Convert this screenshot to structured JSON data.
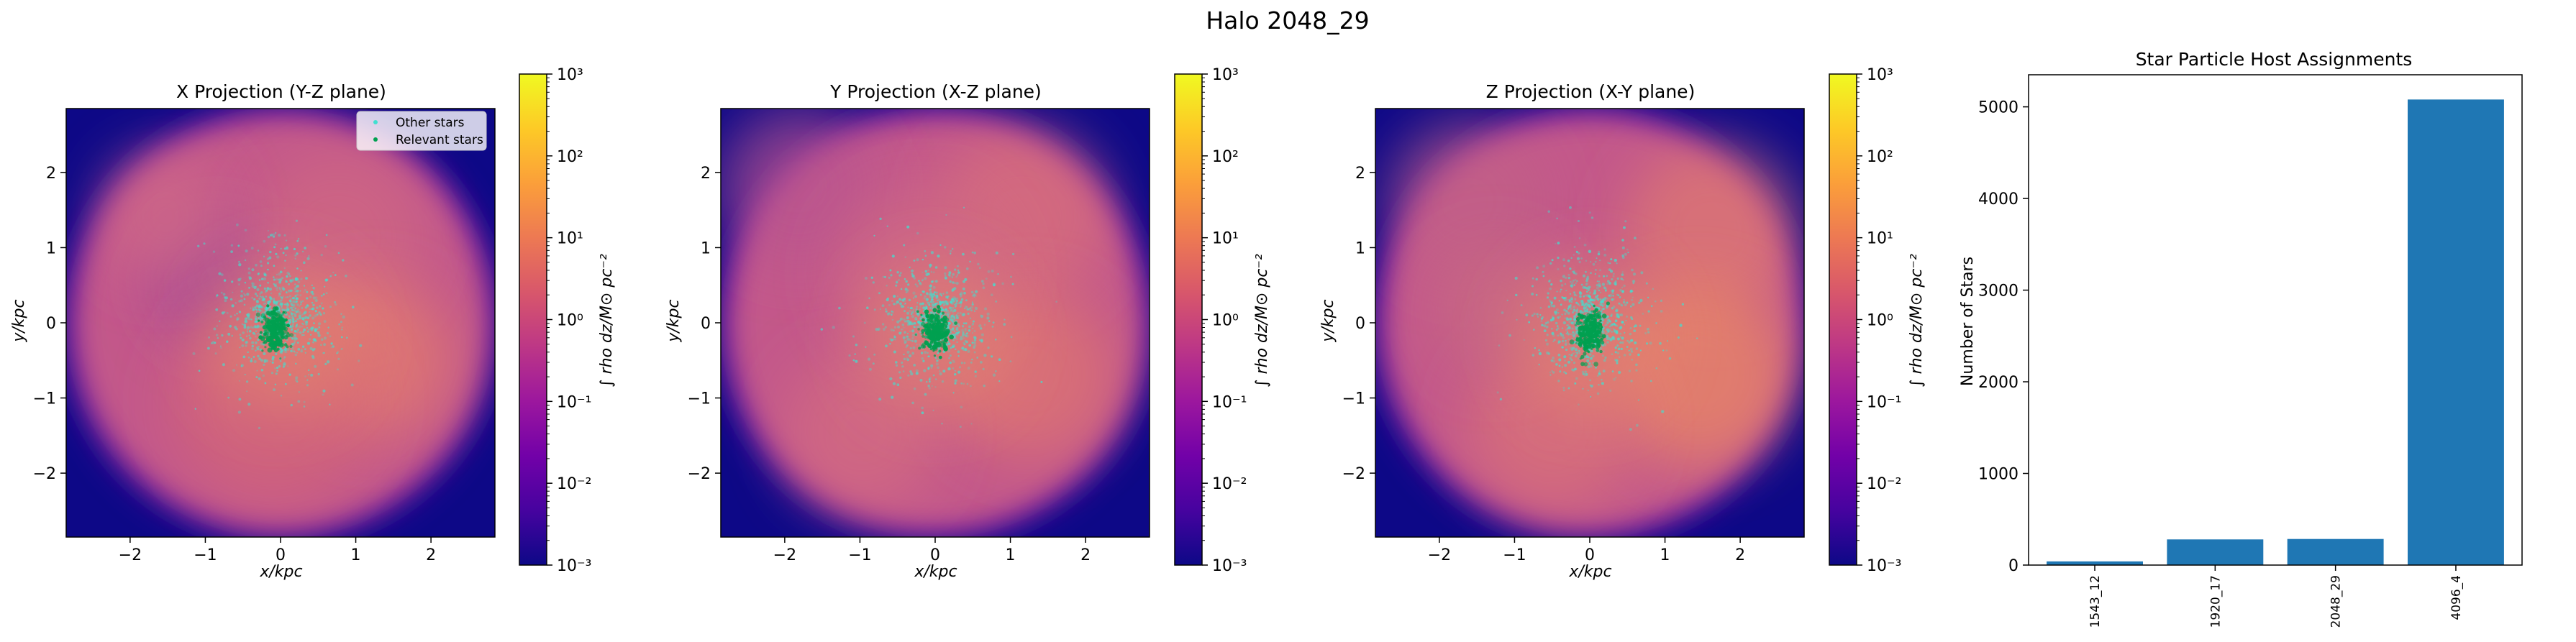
{
  "suptitle": "Halo 2048_29",
  "colors": {
    "bar": "#1f77b4",
    "other_stars": "#41e0d0",
    "relevant_stars": "#00a050",
    "plasma": [
      "#0d0887",
      "#46039f",
      "#7201a8",
      "#9c179e",
      "#bd3786",
      "#d8576b",
      "#ed7953",
      "#fb9f3a",
      "#fdca26",
      "#f0f921"
    ]
  },
  "colorbar": {
    "label": "∫ rho dz/M⊙ pc⁻²",
    "scale": "log",
    "tick_labels": [
      "10⁻³",
      "10⁻²",
      "10⁻¹",
      "10⁰",
      "10¹",
      "10²",
      "10³"
    ],
    "tick_exponents": [
      -3,
      -2,
      -1,
      0,
      1,
      2,
      3
    ]
  },
  "legend": {
    "other_label": "Other stars",
    "relevant_label": "Relevant stars",
    "placement": "upper right"
  },
  "projections": [
    {
      "title": "X Projection (Y-Z plane)",
      "xlabel": "x/kpc",
      "ylabel": "y/kpc",
      "xticks": [
        "−2",
        "−1",
        "0",
        "1",
        "2"
      ],
      "yticks": [
        "2",
        "1",
        "0",
        "−1",
        "−2"
      ],
      "has_legend": true
    },
    {
      "title": "Y Projection (X-Z plane)",
      "xlabel": "x/kpc",
      "ylabel": "y/kpc",
      "xticks": [
        "−2",
        "−1",
        "0",
        "1",
        "2"
      ],
      "yticks": [
        "2",
        "1",
        "0",
        "−1",
        "−2"
      ],
      "has_legend": false
    },
    {
      "title": "Z Projection (X-Y plane)",
      "xlabel": "x/kpc",
      "ylabel": "y/kpc",
      "xticks": [
        "−2",
        "−1",
        "0",
        "1",
        "2"
      ],
      "yticks": [
        "2",
        "1",
        "0",
        "−1",
        "−2"
      ],
      "has_legend": false
    }
  ],
  "chart_data": {
    "type": "bar",
    "title": "Star Particle Host Assignments",
    "xlabel": "",
    "ylabel": "Number of Stars",
    "categories": [
      "1543_12",
      "1920_17",
      "2048_29",
      "4096_4"
    ],
    "values": [
      40,
      280,
      285,
      5080
    ],
    "ylim": [
      0,
      5350
    ],
    "yticks": [
      0,
      1000,
      2000,
      3000,
      4000,
      5000
    ],
    "ytick_labels": [
      "0",
      "1000",
      "2000",
      "3000",
      "4000",
      "5000"
    ],
    "grid": false
  }
}
